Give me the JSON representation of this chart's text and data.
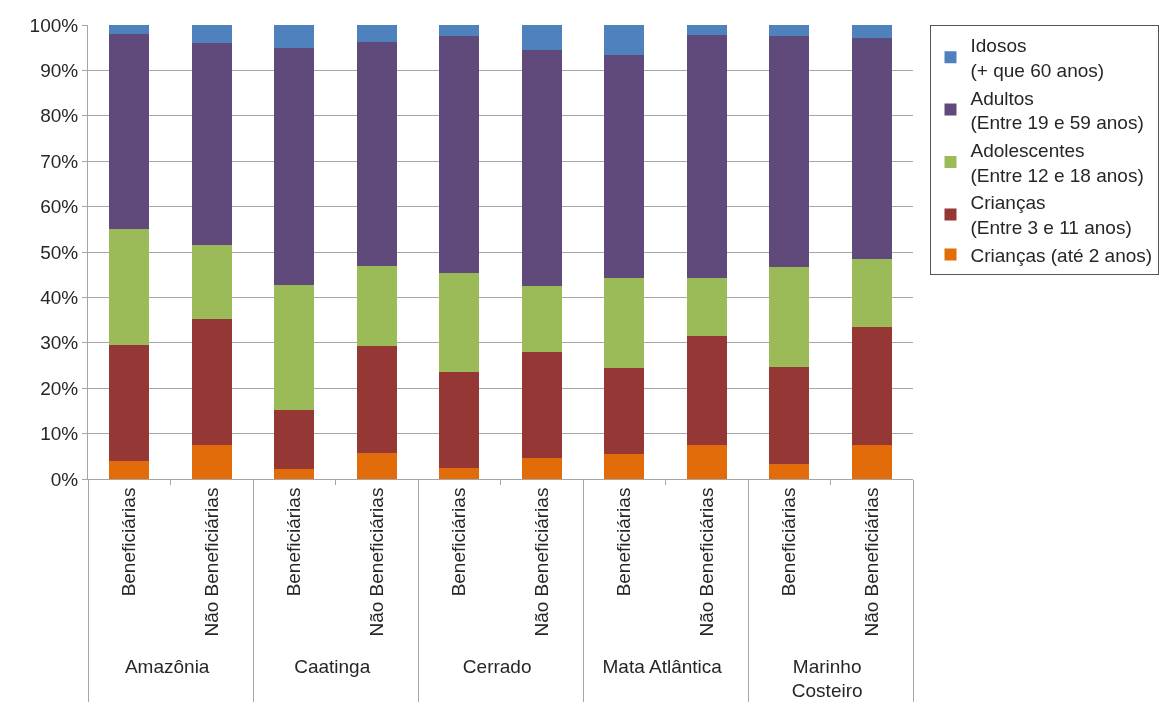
{
  "chart_data": {
    "type": "bar",
    "stacked": true,
    "categories": [
      "Beneficiárias",
      "Não Beneficiárias",
      "Beneficiárias",
      "Não Beneficiárias",
      "Beneficiárias",
      "Não Beneficiárias",
      "Beneficiárias",
      "Não Beneficiárias",
      "Beneficiárias",
      "Não Beneficiárias"
    ],
    "annotations": [
      "Amazônia",
      "Caatinga",
      "Cerrado",
      "Mata Atlântica",
      "Marinho\nCosteiro"
    ],
    "series": [
      {
        "name": "Crianças (até 2 anos)",
        "color": "#e36c0a",
        "values": [
          4,
          7.5,
          2.3,
          5.7,
          2.5,
          4.7,
          5.5,
          7.5,
          3.4,
          7.6
        ]
      },
      {
        "name": "Crianças\n(Entre 3 e 11 anos)",
        "color": "#953735",
        "values": [
          25.5,
          27.8,
          12.9,
          23.5,
          21,
          23.3,
          18.9,
          24,
          21.3,
          25.9
        ]
      },
      {
        "name": "Adolescentes\n(Entre 12 e 18 anos)",
        "color": "#9bbb59",
        "values": [
          25.5,
          16.2,
          27.5,
          17.8,
          21.8,
          14.5,
          19.9,
          12.7,
          22.1,
          14.9
        ]
      },
      {
        "name": "Adultos\n(Entre 19 e 59 anos)",
        "color": "#604a7b",
        "values": [
          43,
          44.5,
          52.3,
          49.3,
          52.3,
          52.1,
          49.2,
          53.6,
          50.8,
          48.8
        ]
      },
      {
        "name": "Idosos\n(+ que 60 anos)",
        "color": "#4f81bd",
        "values": [
          2,
          4,
          5,
          3.7,
          2.4,
          5.4,
          6.5,
          2.2,
          2.4,
          2.8
        ]
      }
    ],
    "ylim": [
      0,
      100
    ],
    "yticks": [
      {
        "value": 0,
        "label": "0%"
      },
      {
        "value": 10,
        "label": "10%"
      },
      {
        "value": 20,
        "label": "20%"
      },
      {
        "value": 30,
        "label": "30%"
      },
      {
        "value": 40,
        "label": "40%"
      },
      {
        "value": 50,
        "label": "50%"
      },
      {
        "value": 60,
        "label": "60%"
      },
      {
        "value": 70,
        "label": "70%"
      },
      {
        "value": 80,
        "label": "80%"
      },
      {
        "value": 90,
        "label": "90%"
      },
      {
        "value": 100,
        "label": "100%"
      }
    ],
    "grid": "y",
    "legend": "right"
  }
}
